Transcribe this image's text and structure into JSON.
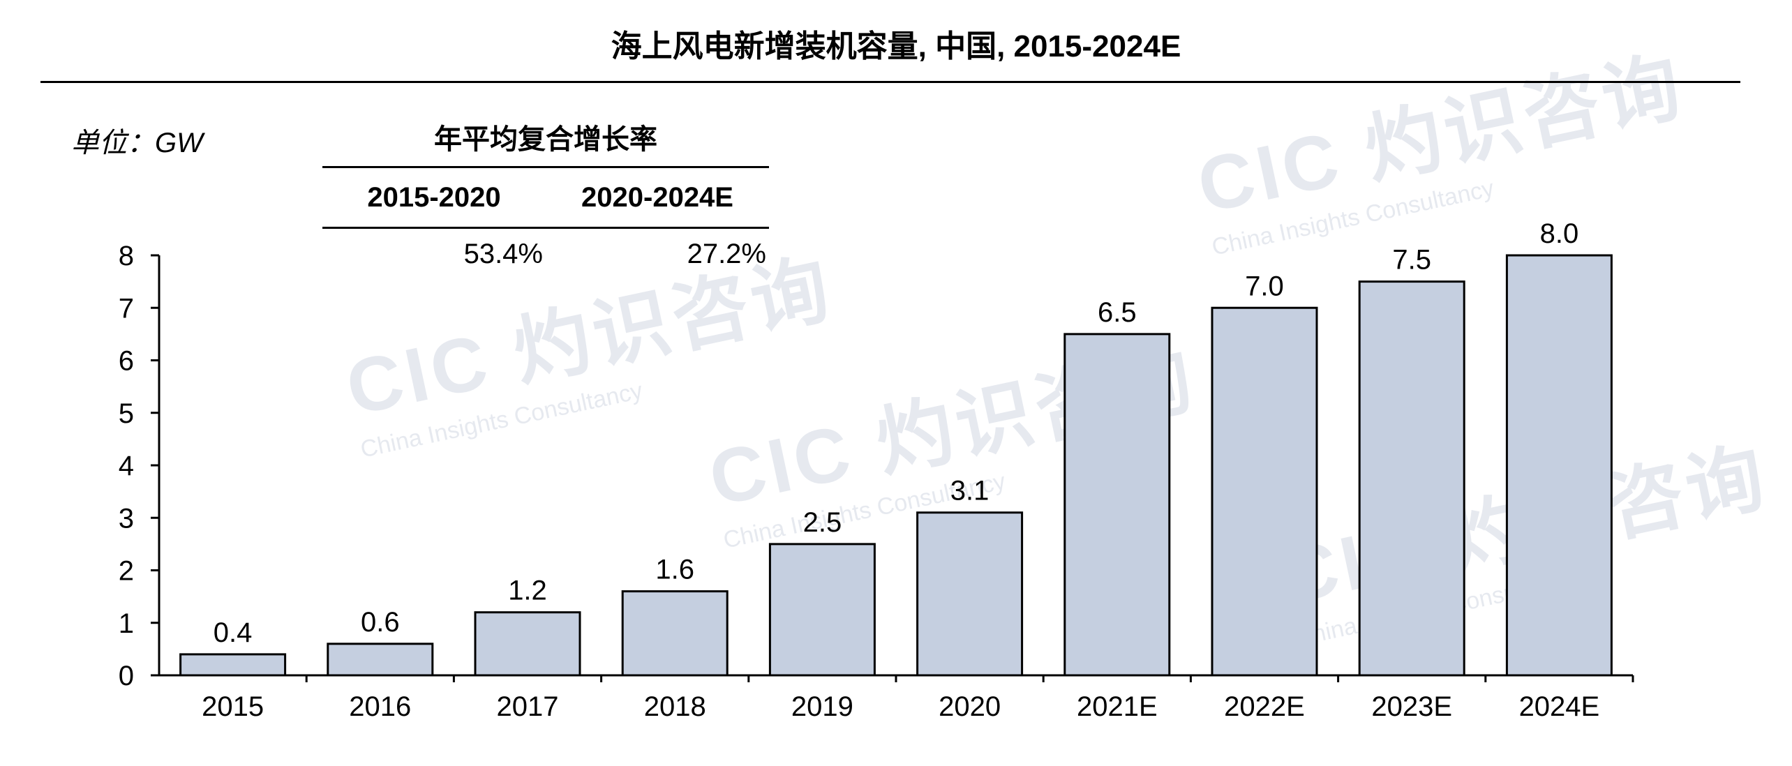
{
  "title": "海上风电新增装机容量, 中国, 2015-2024E",
  "unit_label": "单位：GW",
  "cagr": {
    "heading": "年平均复合增长率",
    "periods": [
      {
        "label": "2015-2020",
        "value": "53.4%"
      },
      {
        "label": "2020-2024E",
        "value": "27.2%"
      }
    ]
  },
  "watermark": {
    "logo": "CIC 灼识咨询",
    "sub": "China Insights Consultancy"
  },
  "colors": {
    "bar_fill": "#c5cfe0",
    "bar_stroke": "#000000",
    "axis": "#000000",
    "watermark": "#b9c2d4"
  },
  "chart_data": {
    "type": "bar",
    "title": "海上风电新增装机容量, 中国, 2015-2024E",
    "ylabel": "单位：GW",
    "xlabel": "",
    "categories": [
      "2015",
      "2016",
      "2017",
      "2018",
      "2019",
      "2020",
      "2021E",
      "2022E",
      "2023E",
      "2024E"
    ],
    "values": [
      0.4,
      0.6,
      1.2,
      1.6,
      2.5,
      3.1,
      6.5,
      7.0,
      7.5,
      8.0
    ],
    "value_labels": [
      "0.4",
      "0.6",
      "1.2",
      "1.6",
      "2.5",
      "3.1",
      "6.5",
      "7.0",
      "7.5",
      "8.0"
    ],
    "ylim": [
      0,
      8
    ],
    "yticks": [
      "0",
      "1",
      "2",
      "3",
      "4",
      "5",
      "6",
      "7",
      "8"
    ],
    "grid": false,
    "legend": "none"
  }
}
